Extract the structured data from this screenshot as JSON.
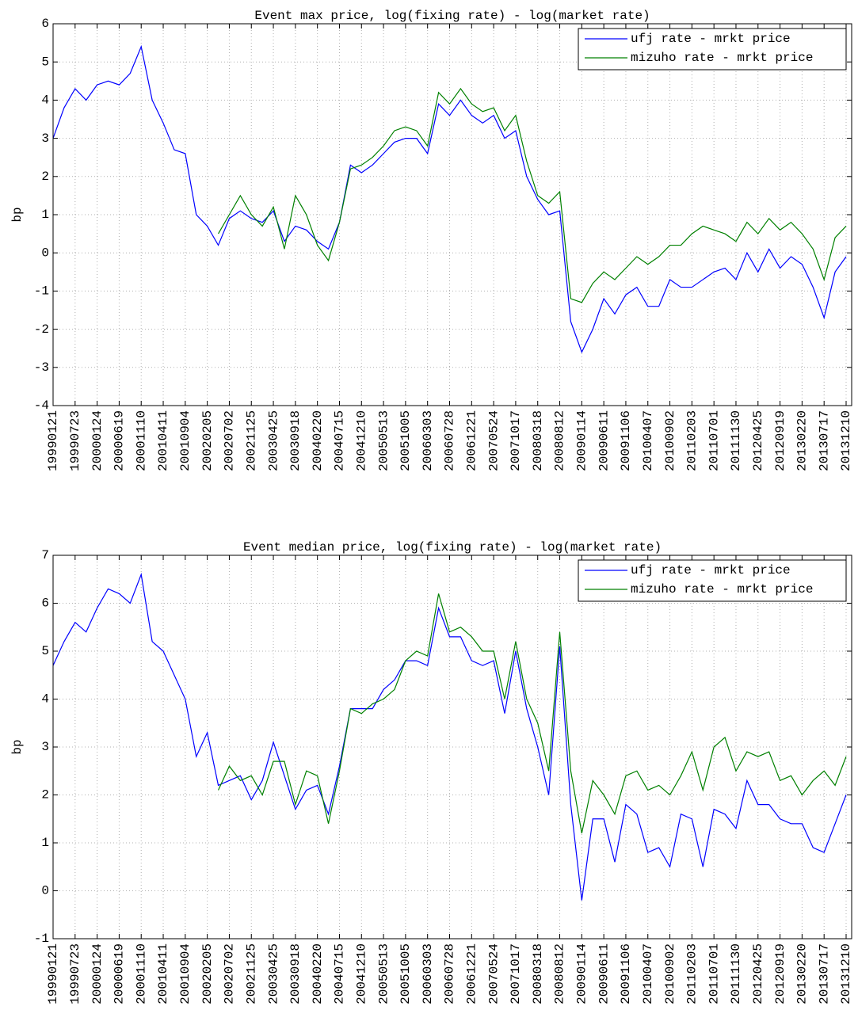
{
  "chart_data": [
    {
      "type": "line",
      "title": "Event max price, log(fixing rate) - log(market rate)",
      "y_label": "bp",
      "categories": [
        "19990121",
        null,
        "19990723",
        null,
        "20000124",
        null,
        "20000619",
        null,
        "20001110",
        null,
        "20010411",
        null,
        "20010904",
        null,
        "20020205",
        null,
        "20020702",
        null,
        "20021125",
        null,
        "20030425",
        null,
        "20030918",
        null,
        "20040220",
        null,
        "20040715",
        null,
        "20041210",
        null,
        "20050513",
        null,
        "20051005",
        null,
        "20060303",
        null,
        "20060728",
        null,
        "20061221",
        null,
        "20070524",
        null,
        "20071017",
        null,
        "20080318",
        null,
        "20080812",
        null,
        "20090114",
        null,
        "20090611",
        null,
        "20091106",
        null,
        "20100407",
        null,
        "20100902",
        null,
        "20110203",
        null,
        "20110701",
        null,
        "20111130",
        null,
        "20120425",
        null,
        "20120919",
        null,
        "20130220",
        null,
        "20130717",
        null,
        "20131210"
      ],
      "series": [
        {
          "name": "ufj rate - mrkt price",
          "color": "#0000ff",
          "values": [
            3.0,
            3.8,
            4.3,
            4.0,
            4.4,
            4.5,
            4.4,
            4.7,
            5.4,
            4.0,
            3.4,
            2.7,
            2.6,
            1.0,
            0.7,
            0.2,
            0.9,
            1.1,
            0.9,
            0.8,
            1.1,
            0.3,
            0.7,
            0.6,
            0.3,
            0.1,
            0.8,
            2.3,
            2.1,
            2.3,
            2.6,
            2.9,
            3.0,
            3.0,
            2.6,
            3.9,
            3.6,
            4.0,
            3.6,
            3.4,
            3.6,
            3.0,
            3.2,
            2.0,
            1.4,
            1.0,
            1.1,
            -1.8,
            -2.6,
            -2.0,
            -1.2,
            -1.6,
            -1.1,
            -0.9,
            -1.4,
            -1.4,
            -0.7,
            -0.9,
            -0.9,
            -0.7,
            -0.5,
            -0.4,
            -0.7,
            0.0,
            -0.5,
            0.1,
            -0.4,
            -0.1,
            -0.3,
            -0.9,
            -1.7,
            -0.5,
            -0.1
          ]
        },
        {
          "name": "mizuho rate - mrkt price",
          "color": "#008000",
          "values": [
            null,
            null,
            null,
            null,
            null,
            null,
            null,
            null,
            null,
            null,
            null,
            null,
            null,
            null,
            null,
            0.5,
            1.0,
            1.5,
            1.0,
            0.7,
            1.2,
            0.1,
            1.5,
            1.0,
            0.2,
            -0.2,
            0.8,
            2.2,
            2.3,
            2.5,
            2.8,
            3.2,
            3.3,
            3.2,
            2.8,
            4.2,
            3.9,
            4.3,
            3.9,
            3.7,
            3.8,
            3.2,
            3.6,
            2.4,
            1.5,
            1.3,
            1.6,
            -1.2,
            -1.3,
            -0.8,
            -0.5,
            -0.7,
            -0.4,
            -0.1,
            -0.3,
            -0.1,
            0.2,
            0.2,
            0.5,
            0.7,
            0.6,
            0.5,
            0.3,
            0.8,
            0.5,
            0.9,
            0.6,
            0.8,
            0.5,
            0.1,
            -0.7,
            0.4,
            0.7
          ]
        }
      ],
      "ylim": [
        -4,
        6
      ],
      "yticks": [
        -4,
        -3,
        -2,
        -1,
        0,
        1,
        2,
        3,
        4,
        5,
        6
      ],
      "grid": true,
      "legend": "northeast"
    },
    {
      "type": "line",
      "title": "Event median price, log(fixing rate) - log(market rate)",
      "y_label": "bp",
      "categories": [
        "19990121",
        null,
        "19990723",
        null,
        "20000124",
        null,
        "20000619",
        null,
        "20001110",
        null,
        "20010411",
        null,
        "20010904",
        null,
        "20020205",
        null,
        "20020702",
        null,
        "20021125",
        null,
        "20030425",
        null,
        "20030918",
        null,
        "20040220",
        null,
        "20040715",
        null,
        "20041210",
        null,
        "20050513",
        null,
        "20051005",
        null,
        "20060303",
        null,
        "20060728",
        null,
        "20061221",
        null,
        "20070524",
        null,
        "20071017",
        null,
        "20080318",
        null,
        "20080812",
        null,
        "20090114",
        null,
        "20090611",
        null,
        "20091106",
        null,
        "20100407",
        null,
        "20100902",
        null,
        "20110203",
        null,
        "20110701",
        null,
        "20111130",
        null,
        "20120425",
        null,
        "20120919",
        null,
        "20130220",
        null,
        "20130717",
        null,
        "20131210"
      ],
      "series": [
        {
          "name": "ufj rate - mrkt price",
          "color": "#0000ff",
          "values": [
            4.7,
            5.2,
            5.6,
            5.4,
            5.9,
            6.3,
            6.2,
            6.0,
            6.6,
            5.2,
            5.0,
            4.5,
            4.0,
            2.8,
            3.3,
            2.2,
            2.3,
            2.4,
            1.9,
            2.3,
            3.1,
            2.4,
            1.7,
            2.1,
            2.2,
            1.6,
            2.6,
            3.8,
            3.8,
            3.8,
            4.2,
            4.4,
            4.8,
            4.8,
            4.7,
            5.9,
            5.3,
            5.3,
            4.8,
            4.7,
            4.8,
            3.7,
            5.0,
            3.8,
            3.0,
            2.0,
            5.1,
            1.8,
            -0.2,
            1.5,
            1.5,
            0.6,
            1.8,
            1.6,
            0.8,
            0.9,
            0.5,
            1.6,
            1.5,
            0.5,
            1.7,
            1.6,
            1.3,
            2.3,
            1.8,
            1.8,
            1.5,
            1.4,
            1.4,
            0.9,
            0.8,
            1.4,
            2.0
          ]
        },
        {
          "name": "mizuho rate - mrkt price",
          "color": "#008000",
          "values": [
            null,
            null,
            null,
            null,
            null,
            null,
            null,
            null,
            null,
            null,
            null,
            null,
            null,
            null,
            null,
            2.1,
            2.6,
            2.3,
            2.4,
            2.0,
            2.7,
            2.7,
            1.8,
            2.5,
            2.4,
            1.4,
            2.5,
            3.8,
            3.7,
            3.9,
            4.0,
            4.2,
            4.8,
            5.0,
            4.9,
            6.2,
            5.4,
            5.5,
            5.3,
            5.0,
            5.0,
            4.0,
            5.2,
            4.0,
            3.5,
            2.5,
            5.4,
            2.5,
            1.2,
            2.3,
            2.0,
            1.6,
            2.4,
            2.5,
            2.1,
            2.2,
            2.0,
            2.4,
            2.9,
            2.1,
            3.0,
            3.2,
            2.5,
            2.9,
            2.8,
            2.9,
            2.3,
            2.4,
            2.0,
            2.3,
            2.5,
            2.2,
            2.8
          ]
        }
      ],
      "ylim": [
        -1,
        7
      ],
      "yticks": [
        -1,
        0,
        1,
        2,
        3,
        4,
        5,
        6,
        7
      ],
      "grid": true,
      "legend": "northeast"
    }
  ]
}
